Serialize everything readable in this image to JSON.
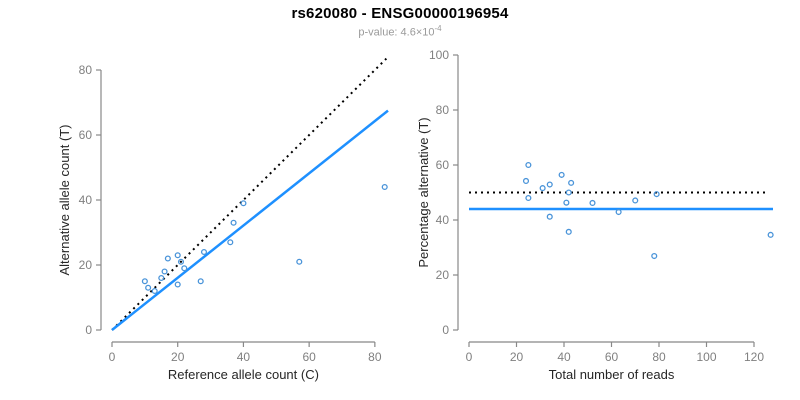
{
  "header": {
    "title": "rs620080 - ENSG00000196954",
    "subtitle_prefix": "p-value: 4.6×10",
    "subtitle_exponent": "-4"
  },
  "colors": {
    "point": "#4a94d9",
    "regression_line": "#1e90ff",
    "reference_line": "#000000",
    "axis": "#888888",
    "tick_label": "#808080",
    "axis_title": "#262626"
  },
  "chart_data": [
    {
      "type": "scatter",
      "name": "allele-counts",
      "xlabel": "Reference allele count (C)",
      "ylabel": "Alternative allele count (T)",
      "xlim": [
        0,
        84
      ],
      "ylim": [
        0,
        84
      ],
      "xticks": [
        0,
        20,
        40,
        60,
        80
      ],
      "yticks": [
        0,
        20,
        40,
        60,
        80
      ],
      "grid": false,
      "legend": "none",
      "points": [
        [
          10,
          15
        ],
        [
          11,
          13
        ],
        [
          13,
          12
        ],
        [
          15,
          16
        ],
        [
          16,
          18
        ],
        [
          17,
          22
        ],
        [
          20,
          14
        ],
        [
          20,
          23
        ],
        [
          21,
          21
        ],
        [
          22,
          19
        ],
        [
          27,
          15
        ],
        [
          28,
          24
        ],
        [
          36,
          27
        ],
        [
          37,
          33
        ],
        [
          40,
          39
        ],
        [
          57,
          21
        ],
        [
          83,
          44
        ]
      ],
      "lines": [
        {
          "name": "identity-reference",
          "style": "dotted",
          "color_key": "reference_line",
          "x1": 0,
          "y1": 0,
          "x2": 83.5,
          "y2": 83.5
        },
        {
          "name": "regression",
          "style": "solid",
          "color_key": "regression_line",
          "x1": 0,
          "y1": 0,
          "x2": 84,
          "y2": 67.5
        }
      ]
    },
    {
      "type": "scatter",
      "name": "percentage-alternative",
      "xlabel": "Total number of reads",
      "ylabel": "Percentage alternative (T)",
      "xlim": [
        0,
        128
      ],
      "ylim": [
        0,
        100
      ],
      "xticks": [
        0,
        20,
        40,
        60,
        80,
        100,
        120
      ],
      "yticks": [
        0,
        20,
        40,
        60,
        80,
        100
      ],
      "grid": false,
      "legend": "none",
      "points": [
        [
          25,
          60
        ],
        [
          24,
          54.2
        ],
        [
          25,
          48
        ],
        [
          31,
          51.6
        ],
        [
          34,
          52.9
        ],
        [
          39,
          56.4
        ],
        [
          43,
          53.5
        ],
        [
          34,
          41.2
        ],
        [
          42,
          50
        ],
        [
          41,
          46.3
        ],
        [
          42,
          35.7
        ],
        [
          52,
          46.2
        ],
        [
          63,
          42.9
        ],
        [
          70,
          47.1
        ],
        [
          79,
          49.4
        ],
        [
          78,
          26.9
        ],
        [
          127,
          34.6
        ]
      ],
      "lines": [
        {
          "name": "expected-50pct",
          "style": "dotted",
          "color_key": "reference_line",
          "x1": 0,
          "y1": 50,
          "x2": 126,
          "y2": 50
        },
        {
          "name": "mean-percentage",
          "style": "solid",
          "color_key": "regression_line",
          "x1": 0,
          "y1": 44,
          "x2": 128,
          "y2": 44
        }
      ]
    }
  ]
}
